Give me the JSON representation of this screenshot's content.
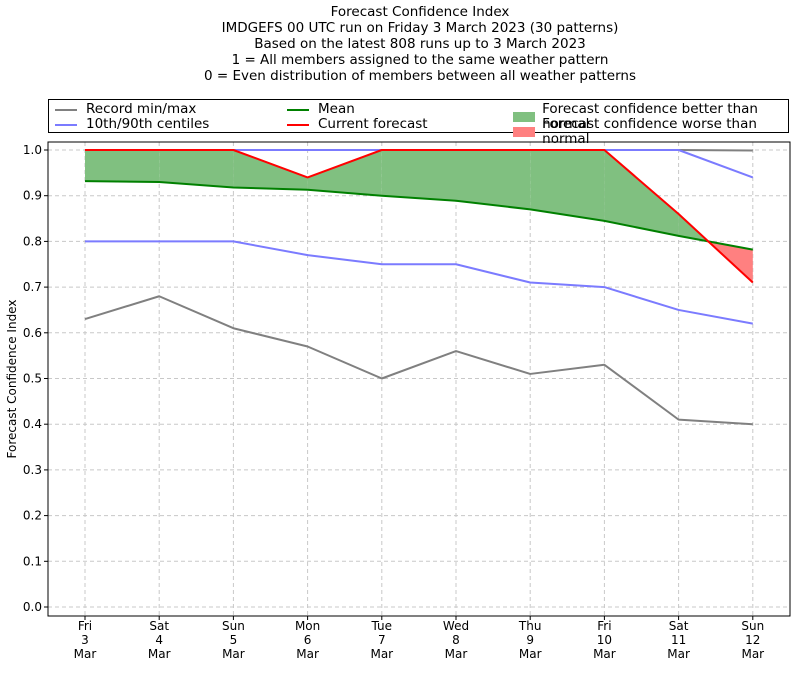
{
  "title_lines": [
    "Forecast Confidence Index",
    "IMDGEFS 00 UTC run on Friday 3 March 2023 (30 patterns)",
    "Based on the latest 808 runs up to 3 March 2023",
    "1 = All members assigned to the same weather pattern",
    "0 = Even distribution of members between all weather patterns"
  ],
  "legend": {
    "record": "Record min/max",
    "centiles": "10th/90th centiles",
    "mean": "Mean",
    "current": "Current forecast",
    "better": "Forecast confidence better than normal",
    "worse": "Forecast confidence worse than normal"
  },
  "colors": {
    "record": "#808080",
    "centiles": "#7b7bff",
    "mean": "#008000",
    "current": "#ff0000",
    "better": "#80c080",
    "worse": "#ff8080"
  },
  "chart_data": {
    "type": "line",
    "title": "Forecast Confidence Index",
    "ylabel": "Forecast Confidence Index",
    "xlabel": "",
    "ylim": [
      0,
      1
    ],
    "yticks": [
      "0.0",
      "0.1",
      "0.2",
      "0.3",
      "0.4",
      "0.5",
      "0.6",
      "0.7",
      "0.8",
      "0.9",
      "1.0"
    ],
    "grid": true,
    "legend_position": "top",
    "categories": [
      [
        "Fri",
        "3",
        "Mar"
      ],
      [
        "Sat",
        "4",
        "Mar"
      ],
      [
        "Sun",
        "5",
        "Mar"
      ],
      [
        "Mon",
        "6",
        "Mar"
      ],
      [
        "Tue",
        "7",
        "Mar"
      ],
      [
        "Wed",
        "8",
        "Mar"
      ],
      [
        "Thu",
        "9",
        "Mar"
      ],
      [
        "Fri",
        "10",
        "Mar"
      ],
      [
        "Sat",
        "11",
        "Mar"
      ],
      [
        "Sun",
        "12",
        "Mar"
      ]
    ],
    "series": [
      {
        "name": "Record max",
        "key": "record",
        "values": [
          1.0,
          1.0,
          1.0,
          1.0,
          1.0,
          1.0,
          1.0,
          1.0,
          1.0,
          0.999
        ]
      },
      {
        "name": "Record min",
        "key": "record",
        "values": [
          0.63,
          0.68,
          0.61,
          0.57,
          0.5,
          0.56,
          0.51,
          0.53,
          0.41,
          0.4
        ]
      },
      {
        "name": "90th centile",
        "key": "centiles",
        "values": [
          1.0,
          1.0,
          1.0,
          1.0,
          1.0,
          1.0,
          1.0,
          1.0,
          1.0,
          0.94
        ]
      },
      {
        "name": "10th centile",
        "key": "centiles",
        "values": [
          0.8,
          0.8,
          0.8,
          0.77,
          0.75,
          0.75,
          0.71,
          0.7,
          0.65,
          0.62
        ]
      },
      {
        "name": "Mean",
        "key": "mean",
        "values": [
          0.932,
          0.93,
          0.918,
          0.913,
          0.9,
          0.889,
          0.87,
          0.845,
          0.812,
          0.782
        ]
      },
      {
        "name": "Current forecast",
        "key": "current",
        "values": [
          1.0,
          1.0,
          1.0,
          0.94,
          1.0,
          1.0,
          1.0,
          1.0,
          0.86,
          0.71
        ]
      }
    ]
  }
}
